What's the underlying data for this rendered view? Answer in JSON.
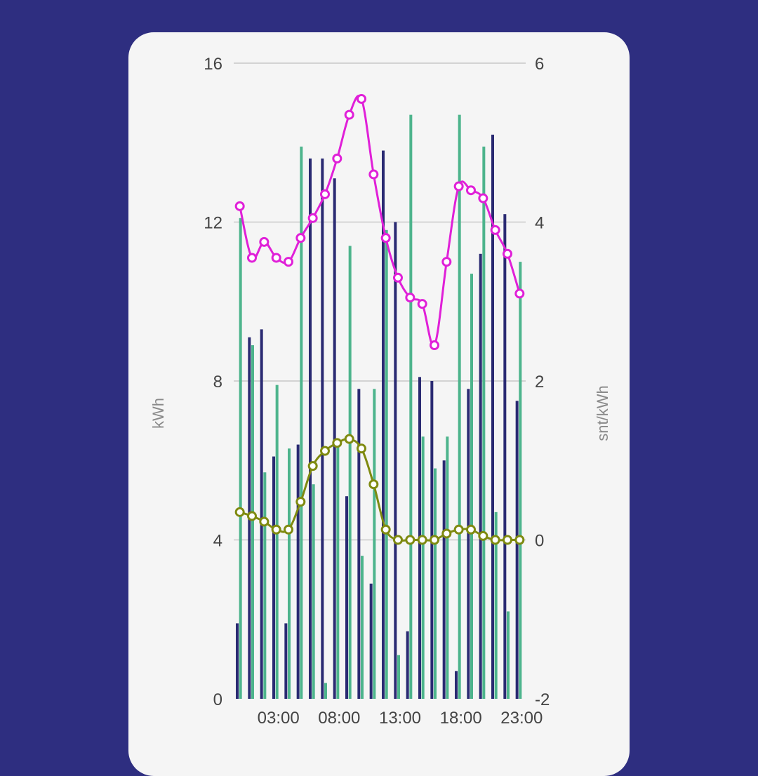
{
  "colors": {
    "background": "#2e2e80",
    "card": "#f5f5f5",
    "grid": "#c8c8c8",
    "bar_a": "#2a2a72",
    "bar_b": "#4db48c",
    "line_price": "#e020d8",
    "line_other": "#7f8a10",
    "marker_fill": "#ffffff"
  },
  "chart_data": {
    "type": "bar",
    "x": [
      0,
      1,
      2,
      3,
      4,
      5,
      6,
      7,
      8,
      9,
      10,
      11,
      12,
      13,
      14,
      15,
      16,
      17,
      18,
      19,
      20,
      21,
      22,
      23
    ],
    "x_tick_labels": [
      "03:00",
      "08:00",
      "13:00",
      "18:00",
      "23:00"
    ],
    "x_tick_values": [
      3,
      8,
      13,
      18,
      23
    ],
    "ylabel_left": "kWh",
    "ylabel_right": "snt/kWh",
    "ylim_left": [
      0,
      16
    ],
    "ylim_right": [
      -2,
      6
    ],
    "y_ticks_left": [
      "0",
      "4",
      "8",
      "12",
      "16"
    ],
    "y_ticks_left_values": [
      0,
      4,
      8,
      12,
      16
    ],
    "y_ticks_right": [
      "-2",
      "0",
      "2",
      "4",
      "6"
    ],
    "y_ticks_right_values": [
      -2,
      0,
      2,
      4,
      6
    ],
    "grid": true,
    "bar_series": [
      {
        "color": "#2a2a72",
        "values": [
          1.9,
          9.1,
          9.3,
          6.1,
          1.9,
          6.4,
          13.6,
          13.6,
          13.1,
          5.1,
          7.8,
          2.9,
          13.8,
          12.0,
          1.7,
          8.1,
          8.0,
          6.0,
          0.7,
          7.8,
          11.2,
          14.2,
          12.2,
          7.5
        ]
      },
      {
        "color": "#4db48c",
        "values": [
          12.1,
          8.9,
          5.7,
          7.9,
          6.3,
          13.9,
          5.4,
          0.4,
          6.4,
          11.4,
          3.6,
          7.8,
          11.8,
          1.1,
          14.7,
          6.6,
          5.8,
          6.6,
          14.7,
          10.7,
          13.9,
          4.7,
          2.2,
          11.0
        ]
      }
    ],
    "line_series": [
      {
        "color": "#e020d8",
        "axis": "right",
        "values": [
          4.2,
          3.55,
          3.75,
          3.55,
          3.5,
          3.8,
          4.05,
          4.35,
          4.8,
          5.35,
          5.55,
          4.6,
          3.8,
          3.3,
          3.05,
          2.97,
          2.45,
          3.5,
          4.45,
          4.4,
          4.3,
          3.9,
          3.6,
          3.1
        ]
      },
      {
        "color": "#7f8a10",
        "axis": "right",
        "values": [
          0.35,
          0.3,
          0.23,
          0.13,
          0.13,
          0.48,
          0.93,
          1.12,
          1.22,
          1.27,
          1.15,
          0.7,
          0.13,
          0.0,
          0.0,
          0.0,
          0.0,
          0.08,
          0.13,
          0.13,
          0.05,
          0.0,
          0.0,
          0.0
        ]
      }
    ]
  }
}
